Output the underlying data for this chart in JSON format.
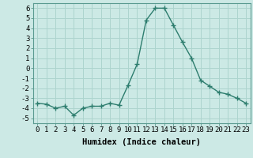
{
  "x": [
    0,
    1,
    2,
    3,
    4,
    5,
    6,
    7,
    8,
    9,
    10,
    11,
    12,
    13,
    14,
    15,
    16,
    17,
    18,
    19,
    20,
    21,
    22,
    23
  ],
  "y": [
    -3.5,
    -3.6,
    -4.0,
    -3.8,
    -4.7,
    -4.0,
    -3.8,
    -3.8,
    -3.5,
    -3.7,
    -1.7,
    0.4,
    4.8,
    6.0,
    6.0,
    4.3,
    2.6,
    1.0,
    -1.2,
    -1.8,
    -2.4,
    -2.6,
    -3.0,
    -3.5
  ],
  "line_color": "#2d7d6e",
  "marker": "+",
  "marker_size": 4,
  "bg_color": "#cce9e5",
  "grid_color": "#add4ce",
  "xlabel": "Humidex (Indice chaleur)",
  "xlim": [
    -0.5,
    23.5
  ],
  "ylim": [
    -5.5,
    6.5
  ],
  "yticks": [
    -5,
    -4,
    -3,
    -2,
    -1,
    0,
    1,
    2,
    3,
    4,
    5,
    6
  ],
  "xticks": [
    0,
    1,
    2,
    3,
    4,
    5,
    6,
    7,
    8,
    9,
    10,
    11,
    12,
    13,
    14,
    15,
    16,
    17,
    18,
    19,
    20,
    21,
    22,
    23
  ],
  "xlabel_fontsize": 7.5,
  "tick_fontsize": 6.5,
  "linewidth": 1.0,
  "marker_linewidth": 1.0
}
